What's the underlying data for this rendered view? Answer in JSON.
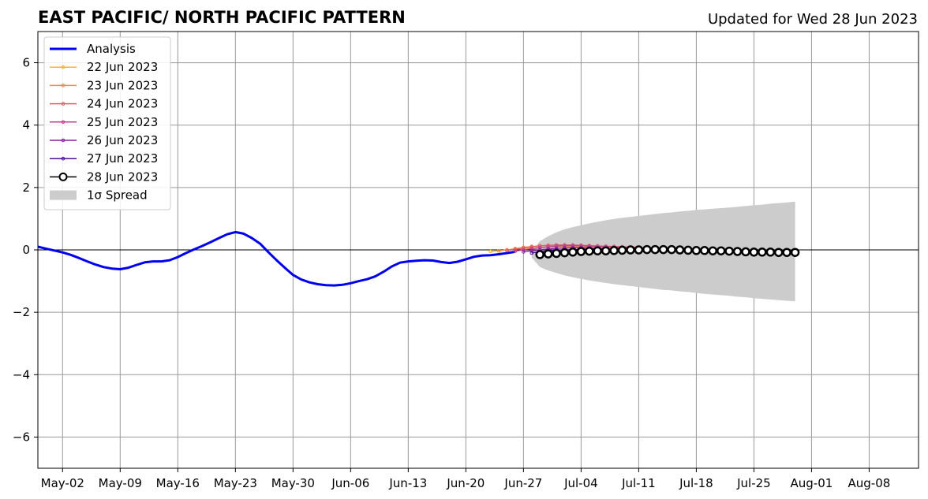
{
  "chart_data": {
    "type": "line",
    "title": "EAST PACIFIC/ NORTH PACIFIC PATTERN",
    "subtitle": "Updated for Wed 28 Jun 2023",
    "xlabel": "",
    "ylabel": "",
    "xlim": [
      "2023-04-29",
      "2023-08-14"
    ],
    "ylim": [
      -7,
      7
    ],
    "grid": true,
    "legend_position": "top-left",
    "x_ticks": [
      {
        "date": "2023-05-02",
        "label": "May-02"
      },
      {
        "date": "2023-05-09",
        "label": "May-09"
      },
      {
        "date": "2023-05-16",
        "label": "May-16"
      },
      {
        "date": "2023-05-23",
        "label": "May-23"
      },
      {
        "date": "2023-05-30",
        "label": "May-30"
      },
      {
        "date": "2023-06-06",
        "label": "Jun-06"
      },
      {
        "date": "2023-06-13",
        "label": "Jun-13"
      },
      {
        "date": "2023-06-20",
        "label": "Jun-20"
      },
      {
        "date": "2023-06-27",
        "label": "Jun-27"
      },
      {
        "date": "2023-07-04",
        "label": "Jul-04"
      },
      {
        "date": "2023-07-11",
        "label": "Jul-11"
      },
      {
        "date": "2023-07-18",
        "label": "Jul-18"
      },
      {
        "date": "2023-07-25",
        "label": "Jul-25"
      },
      {
        "date": "2023-08-01",
        "label": "Aug-01"
      },
      {
        "date": "2023-08-08",
        "label": "Aug-08"
      }
    ],
    "y_ticks": [
      {
        "value": 6,
        "label": "6"
      },
      {
        "value": 4,
        "label": "4"
      },
      {
        "value": 2,
        "label": "2"
      },
      {
        "value": 0,
        "label": "0"
      },
      {
        "value": -2,
        "label": "−2"
      },
      {
        "value": -4,
        "label": "−4"
      },
      {
        "value": -6,
        "label": "−6"
      }
    ],
    "analysis": {
      "name": "Analysis",
      "color": "#0000ee",
      "start_date": "2023-04-29",
      "values": [
        0.1,
        0.04,
        -0.02,
        -0.08,
        -0.16,
        -0.26,
        -0.37,
        -0.47,
        -0.55,
        -0.6,
        -0.62,
        -0.57,
        -0.48,
        -0.4,
        -0.37,
        -0.37,
        -0.33,
        -0.23,
        -0.1,
        0.02,
        0.13,
        0.25,
        0.38,
        0.5,
        0.57,
        0.52,
        0.38,
        0.2,
        -0.07,
        -0.33,
        -0.57,
        -0.8,
        -0.95,
        -1.04,
        -1.1,
        -1.13,
        -1.14,
        -1.12,
        -1.07,
        -1.0,
        -0.94,
        -0.85,
        -0.7,
        -0.53,
        -0.41,
        -0.37,
        -0.35,
        -0.33,
        -0.34,
        -0.39,
        -0.42,
        -0.38,
        -0.3,
        -0.22,
        -0.18,
        -0.17,
        -0.14,
        -0.1,
        -0.06
      ]
    },
    "forecasts": [
      {
        "name": "22 Jun 2023",
        "color": "#f9b233",
        "start_date": "2023-06-23",
        "values": [
          -0.05,
          -0.03,
          0.0,
          0.02,
          0.04,
          0.06,
          0.08,
          0.09,
          0.1,
          0.1,
          0.1,
          0.1,
          0.09,
          0.08,
          0.07,
          0.06,
          0.05,
          0.04,
          0.03
        ]
      },
      {
        "name": "23 Jun 2023",
        "color": "#f08c40",
        "start_date": "2023-06-24",
        "values": [
          -0.03,
          0.0,
          0.04,
          0.08,
          0.11,
          0.13,
          0.14,
          0.15,
          0.15,
          0.15,
          0.14,
          0.13,
          0.12,
          0.1,
          0.09,
          0.08,
          0.07,
          0.06
        ]
      },
      {
        "name": "24 Jun 2023",
        "color": "#e05c6a",
        "start_date": "2023-06-25",
        "values": [
          -0.02,
          0.02,
          0.06,
          0.1,
          0.13,
          0.15,
          0.16,
          0.16,
          0.16,
          0.15,
          0.14,
          0.13,
          0.12,
          0.11,
          0.1,
          0.09,
          0.08
        ]
      },
      {
        "name": "25 Jun 2023",
        "color": "#b8408f",
        "start_date": "2023-06-26",
        "values": [
          -0.04,
          0.0,
          0.04,
          0.07,
          0.1,
          0.12,
          0.13,
          0.13,
          0.13,
          0.12,
          0.11,
          0.1,
          0.09,
          0.08,
          0.07
        ]
      },
      {
        "name": "26 Jun 2023",
        "color": "#8a1fa0",
        "start_date": "2023-06-27",
        "values": [
          -0.06,
          -0.03,
          0.0,
          0.03,
          0.05,
          0.06,
          0.07,
          0.07,
          0.06,
          0.05,
          0.04
        ]
      },
      {
        "name": "27 Jun 2023",
        "color": "#4b0d9a",
        "start_date": "2023-06-28",
        "values": [
          -0.1,
          -0.06,
          -0.03,
          -0.01,
          0.0,
          0.01,
          0.01,
          0.0,
          0.0
        ]
      },
      {
        "name": "28 Jun 2023",
        "color": "#000000",
        "marker": "open-circle",
        "start_date": "2023-06-29",
        "values": [
          -0.15,
          -0.13,
          -0.11,
          -0.09,
          -0.07,
          -0.05,
          -0.04,
          -0.03,
          -0.03,
          -0.02,
          -0.01,
          0.0,
          0.0,
          0.01,
          0.01,
          0.01,
          0.01,
          0.0,
          -0.01,
          -0.02,
          -0.02,
          -0.03,
          -0.03,
          -0.04,
          -0.05,
          -0.06,
          -0.07,
          -0.07,
          -0.07,
          -0.08,
          -0.08,
          -0.08
        ]
      }
    ],
    "spread": {
      "name": "1σ Spread",
      "color": "#cccccc",
      "start_date": "2023-06-28",
      "upper": [
        -0.05,
        0.28,
        0.44,
        0.56,
        0.66,
        0.73,
        0.79,
        0.85,
        0.9,
        0.95,
        0.99,
        1.03,
        1.06,
        1.09,
        1.12,
        1.15,
        1.18,
        1.2,
        1.23,
        1.25,
        1.28,
        1.3,
        1.32,
        1.34,
        1.36,
        1.38,
        1.41,
        1.43,
        1.45,
        1.48,
        1.5,
        1.52,
        1.55
      ],
      "lower": [
        -0.25,
        -0.55,
        -0.66,
        -0.74,
        -0.82,
        -0.88,
        -0.93,
        -0.98,
        -1.02,
        -1.06,
        -1.1,
        -1.13,
        -1.16,
        -1.19,
        -1.22,
        -1.25,
        -1.28,
        -1.3,
        -1.33,
        -1.35,
        -1.38,
        -1.41,
        -1.43,
        -1.45,
        -1.47,
        -1.5,
        -1.52,
        -1.55,
        -1.57,
        -1.59,
        -1.61,
        -1.63,
        -1.65
      ]
    }
  }
}
